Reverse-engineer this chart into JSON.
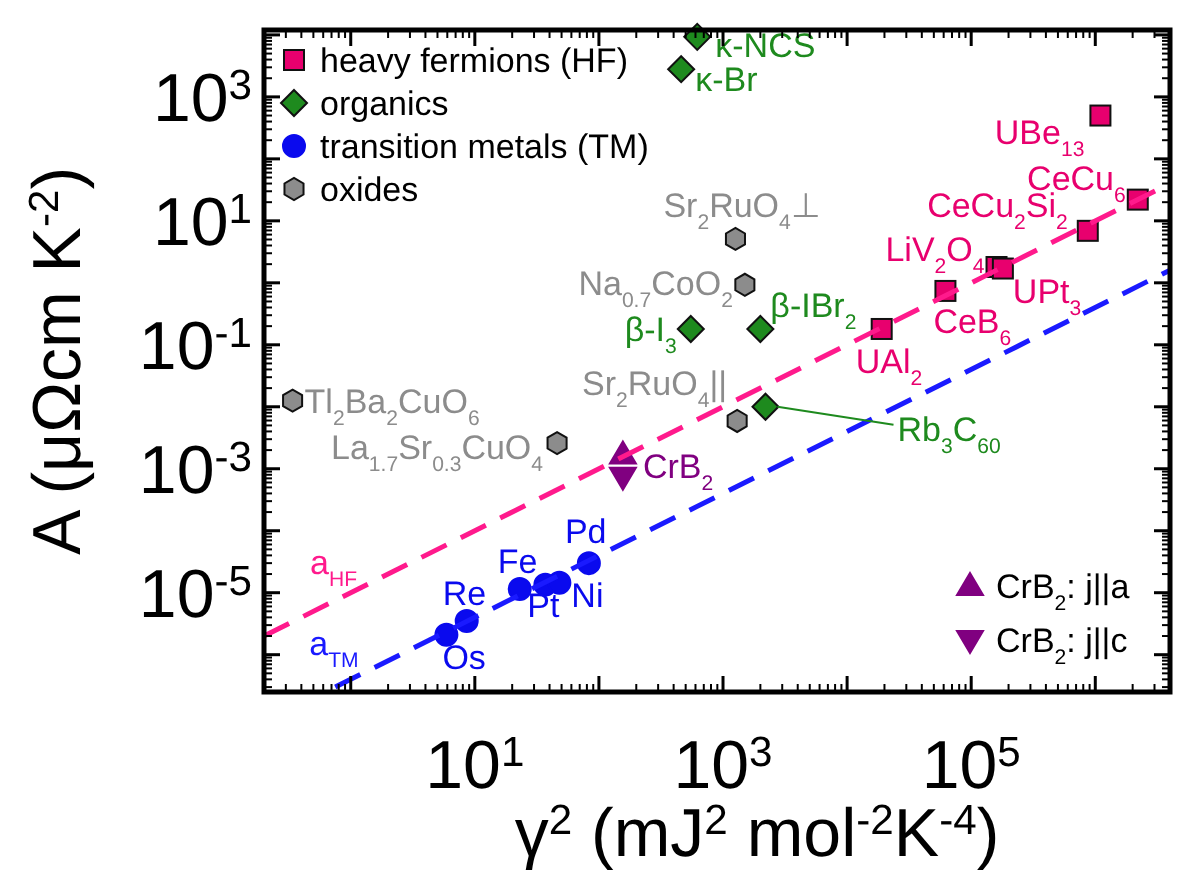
{
  "chart_data": {
    "type": "scatter",
    "xlabel": "γ$^{2}$ (mJ$^{2}$ mol$^{-2}$K$^{-4}$)",
    "ylabel": "A (μΩcm K$^{-2}$)",
    "log": "xy",
    "legend": "top left",
    "grid": false,
    "xlim": [
      0.2,
      4000000
    ],
    "ylim": [
      2.5e-07,
      12000
    ],
    "xticks": [
      {
        "value": 1,
        "label": null
      },
      {
        "value": 10,
        "label": "10$^{1}$"
      },
      {
        "value": 100,
        "label": null
      },
      {
        "value": 1000,
        "label": "10$^{3}$"
      },
      {
        "value": 10000,
        "label": null
      },
      {
        "value": 100000,
        "label": "10$^{5}$"
      },
      {
        "value": 1000000,
        "label": null
      }
    ],
    "yticks": [
      {
        "value": 1e-06,
        "label": null
      },
      {
        "value": 1e-05,
        "label": "10$^{-5}$"
      },
      {
        "value": 0.0001,
        "label": null
      },
      {
        "value": 0.001,
        "label": "10$^{-3}$"
      },
      {
        "value": 0.01,
        "label": null
      },
      {
        "value": 0.1,
        "label": "10$^{-1}$"
      },
      {
        "value": 1,
        "label": null
      },
      {
        "value": 10,
        "label": "10$^{1}$"
      },
      {
        "value": 100,
        "label": null
      },
      {
        "value": 1000,
        "label": "10$^{3}$"
      },
      {
        "value": 10000,
        "label": null
      }
    ],
    "series": [
      {
        "name": "heavy fermions (HF)",
        "color": "#e8006e",
        "marker": "square",
        "x": [
          1100000,
          2200000,
          870000,
          160000,
          180000,
          62000,
          19000
        ],
        "values": [
          500,
          22,
          6.9,
          1.8,
          1.7,
          0.74,
          0.18
        ]
      },
      {
        "name": "organics",
        "color": "#1e8a1e",
        "marker": "diamond",
        "x": [
          620,
          460,
          550,
          2000,
          2200
        ],
        "values": [
          9300,
          2800,
          0.18,
          0.18,
          0.01
        ]
      },
      {
        "name": "transition metals (TM)",
        "color": "#0a0aee",
        "marker": "circle",
        "x": [
          5.9,
          8.6,
          23,
          37,
          48,
          83
        ],
        "values": [
          2.1e-06,
          3.5e-06,
          1.15e-05,
          1.35e-05,
          1.45e-05,
          3e-05
        ]
      },
      {
        "name": "oxides",
        "color": "#8c8c8c",
        "x": [
          1260,
          1500,
          1300,
          0.34,
          46
        ],
        "values": [
          5.1,
          0.93,
          0.0059,
          0.0126,
          0.0026
        ]
      },
      {
        "name": "CrB$_{2}$: j||a",
        "color": "#800080",
        "marker": "triangle",
        "x": [
          156
        ],
        "values": [
          0.0017
        ]
      },
      {
        "name": "CrB$_{2}$: j||c",
        "color": "#800080",
        "marker": "triangle-down",
        "x": [
          156
        ],
        "values": [
          0.00074
        ]
      },
      {
        "name": "a$_{HF}$",
        "type": "line",
        "line_style": "dashed",
        "color": "#ff1a8c",
        "x": [
          0.2,
          4000000
        ],
        "values": [
          2e-06,
          40
        ]
      },
      {
        "name": "a$_{TM}$",
        "type": "line",
        "line_style": "dashed",
        "color": "#1a1aff",
        "x": [
          0.75,
          4000000
        ],
        "values": [
          3e-07,
          1.6
        ]
      }
    ],
    "annotations": [
      {
        "text": "UBe$_{13}$",
        "x": 1100000,
        "y": 500
      },
      {
        "text": "CeCu$_{6}$",
        "x": 2200000,
        "y": 22
      },
      {
        "text": "CeCu$_{2}$Si$_{2}$",
        "x": 870000,
        "y": 6.9
      },
      {
        "text": "LiV$_{2}$O$_{4}$",
        "x": 160000,
        "y": 1.8
      },
      {
        "text": "UPt$_{3}$",
        "x": 180000,
        "y": 1.7
      },
      {
        "text": "CeB$_{6}$",
        "x": 62000,
        "y": 0.74
      },
      {
        "text": "UAl$_{2}$",
        "x": 19000,
        "y": 0.18
      },
      {
        "text": "κ-NCS",
        "x": 620,
        "y": 9300
      },
      {
        "text": "κ-Br",
        "x": 460,
        "y": 2800
      },
      {
        "text": "β-I$_{3}$",
        "x": 550,
        "y": 0.18
      },
      {
        "text": "β-IBr$_{2}$",
        "x": 2000,
        "y": 0.18
      },
      {
        "text": "Rb$_{3}$C$_{60}$",
        "x": 2200,
        "y": 0.01
      },
      {
        "text": "Sr$_{2}$RuO$_{4}$⊥",
        "x": 1260,
        "y": 5.1
      },
      {
        "text": "Na$_{0.7}$CoO$_{2}$",
        "x": 1500,
        "y": 0.93
      },
      {
        "text": "Sr$_{2}$RuO$_{4}$||",
        "x": 1300,
        "y": 0.0059
      },
      {
        "text": "Tl$_{2}$Ba$_{2}$CuO$_{6}$",
        "x": 0.34,
        "y": 0.0126
      },
      {
        "text": "La$_{1.7}$Sr$_{0.3}$CuO$_{4}$",
        "x": 46,
        "y": 0.0026
      },
      {
        "text": "Os",
        "x": 5.9,
        "y": 2.1e-06
      },
      {
        "text": "Re",
        "x": 8.6,
        "y": 3.5e-06
      },
      {
        "text": "Fe",
        "x": 23,
        "y": 1.15e-05
      },
      {
        "text": "Pt",
        "x": 37,
        "y": 1.35e-05
      },
      {
        "text": "Ni",
        "x": 48,
        "y": 1.45e-05
      },
      {
        "text": "Pd",
        "x": 83,
        "y": 3e-05
      },
      {
        "text": "CrB$_{2}$",
        "x": 156,
        "y": 0.0017
      }
    ]
  }
}
